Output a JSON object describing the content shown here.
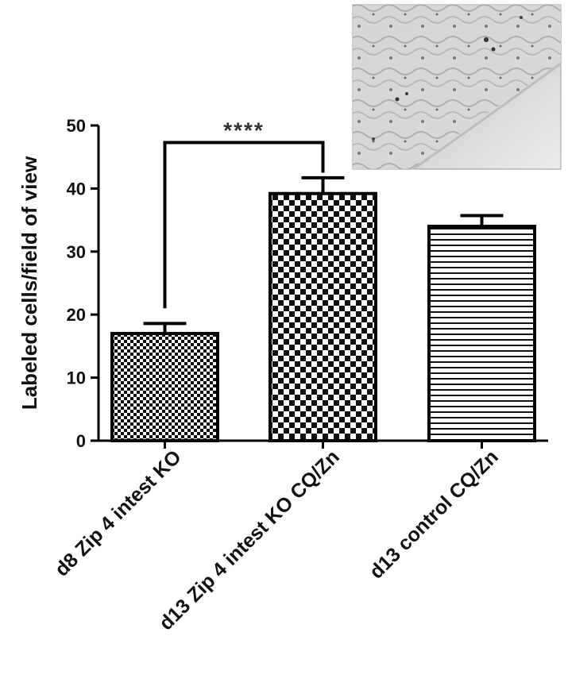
{
  "chart_data": {
    "type": "bar",
    "title": "",
    "ylabel": "Labeled cells/field of view",
    "xlabel": "",
    "ylim": [
      0,
      50
    ],
    "yticks": [
      0,
      10,
      20,
      30,
      40,
      50
    ],
    "categories": [
      "d8 Zip 4 intest KO",
      "d13 Zip 4 intest KO CQ/Zn",
      "d13 control CQ/Zn"
    ],
    "values": [
      17,
      39.2,
      34
    ],
    "errors": [
      1.6,
      2.5,
      1.7
    ],
    "bar_patterns": [
      "fine-checker",
      "coarse-checker",
      "horizontal-stripes"
    ],
    "significance": {
      "from": 0,
      "to": 1,
      "label": "****"
    },
    "grid": false,
    "legend": "none"
  },
  "inset": {
    "name": "micrograph",
    "description_visible": false
  }
}
